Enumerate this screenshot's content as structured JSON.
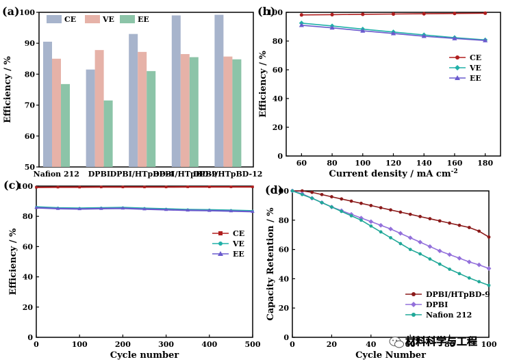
{
  "chart_data": [
    {
      "panel": "(a)",
      "type": "bar",
      "ylabel": "Efficiency / %",
      "xlabel": "",
      "ylim": [
        50,
        100
      ],
      "yticks": [
        50,
        60,
        70,
        80,
        90,
        100
      ],
      "categories": [
        "Nafion 212",
        "DPBI",
        "DPBI/HTpBD-4",
        "DPBI/HTpBD-9",
        "DPBI/HTpBD-12"
      ],
      "series": [
        {
          "name": "CE",
          "color": "#a7b4cc",
          "values": [
            90.5,
            81.5,
            93,
            99,
            99.2
          ]
        },
        {
          "name": "VE",
          "color": "#e6b2a8",
          "values": [
            85,
            87.8,
            87.2,
            86.5,
            85.7
          ]
        },
        {
          "name": "EE",
          "color": "#8cc4a8",
          "values": [
            76.8,
            71.5,
            81,
            85.5,
            84.8
          ]
        }
      ],
      "legend": "top"
    },
    {
      "panel": "(b)",
      "type": "line",
      "ylabel": "Efficiency / %",
      "xlabel": "Current density / mA cm",
      "xlabel_sup": "-2",
      "xlim": [
        50,
        190
      ],
      "ylim": [
        0,
        100
      ],
      "xticks": [
        60,
        80,
        100,
        120,
        140,
        160,
        180
      ],
      "yticks": [
        0,
        20,
        40,
        60,
        80,
        100
      ],
      "x": [
        60,
        80,
        100,
        120,
        140,
        160,
        180
      ],
      "series": [
        {
          "name": "CE",
          "color": "#b01e1e",
          "marker": "circle",
          "values": [
            98.2,
            98.4,
            98.6,
            98.8,
            99.0,
            99.2,
            99.4
          ]
        },
        {
          "name": "VE",
          "color": "#20b0a8",
          "marker": "diamond",
          "values": [
            92.5,
            90.5,
            88.3,
            86.3,
            84.3,
            82.4,
            80.8
          ]
        },
        {
          "name": "EE",
          "color": "#6a5acd",
          "marker": "triangle",
          "values": [
            91.0,
            89.2,
            87.1,
            85.3,
            83.4,
            81.8,
            80.4
          ]
        }
      ],
      "legend": "right"
    },
    {
      "panel": "(c)",
      "type": "line",
      "ylabel": "Efficiency / %",
      "xlabel": "Cycle number",
      "xlim": [
        0,
        500
      ],
      "ylim": [
        0,
        100
      ],
      "xticks": [
        0,
        100,
        200,
        300,
        400,
        500
      ],
      "yticks": [
        0,
        20,
        40,
        60,
        80,
        100
      ],
      "x": [
        0,
        50,
        100,
        150,
        200,
        250,
        300,
        350,
        400,
        450,
        500
      ],
      "series": [
        {
          "name": "CE",
          "color": "#b01e1e",
          "marker": "square",
          "values": [
            99.2,
            99.3,
            99.3,
            99.4,
            99.4,
            99.4,
            99.4,
            99.5,
            99.5,
            99.5,
            99.5
          ]
        },
        {
          "name": "VE",
          "color": "#20b0a8",
          "marker": "circle",
          "values": [
            86.2,
            85.6,
            85.4,
            85.6,
            85.8,
            85.3,
            84.9,
            84.5,
            84.3,
            84.0,
            83.6
          ]
        },
        {
          "name": "EE",
          "color": "#6a5acd",
          "marker": "triangle",
          "values": [
            85.7,
            85.1,
            84.9,
            85.1,
            85.3,
            84.8,
            84.4,
            84.0,
            83.8,
            83.5,
            83.1
          ]
        }
      ],
      "legend": "right"
    },
    {
      "panel": "(d)",
      "type": "line",
      "ylabel": "Capacity Retention / %",
      "xlabel": "Cycle Number",
      "xlim": [
        0,
        100
      ],
      "ylim": [
        0,
        100
      ],
      "xticks": [
        0,
        20,
        40,
        60,
        80,
        100
      ],
      "xtick_labels": [
        "0",
        "20",
        "40",
        "60",
        "80",
        "100"
      ],
      "yticks": [
        0,
        20,
        40,
        60,
        80,
        100
      ],
      "x": [
        0,
        5,
        10,
        15,
        20,
        25,
        30,
        35,
        40,
        45,
        50,
        55,
        60,
        65,
        70,
        75,
        80,
        85,
        90,
        95,
        100
      ],
      "series": [
        {
          "name": "DPBI/HTpBD-9",
          "color": "#8b1a1a",
          "marker": "circle",
          "values": [
            100,
            100,
            99,
            97.5,
            96,
            94.5,
            93,
            91.5,
            90,
            88.5,
            87,
            85.5,
            84,
            82.5,
            81,
            79.5,
            78,
            76.5,
            75,
            72.5,
            68.5
          ]
        },
        {
          "name": "DPBI",
          "color": "#9370db",
          "marker": "diamond",
          "values": [
            100,
            98,
            95,
            92,
            89,
            86.5,
            84,
            81.5,
            79,
            76.5,
            74,
            71,
            68,
            65,
            62,
            59,
            56.5,
            54,
            51.5,
            49.5,
            47
          ]
        },
        {
          "name": "Nafion 212",
          "color": "#20a898",
          "marker": "circle",
          "values": [
            100,
            97.5,
            95,
            92,
            89,
            86,
            83,
            80,
            76,
            72,
            68,
            64,
            60,
            57,
            53.5,
            50,
            46.5,
            43.5,
            40.5,
            38,
            35.5
          ]
        }
      ],
      "legend": "bottom-left"
    }
  ],
  "watermark": {
    "text": "材料科学与工程",
    "icon": "wechat-icon"
  }
}
